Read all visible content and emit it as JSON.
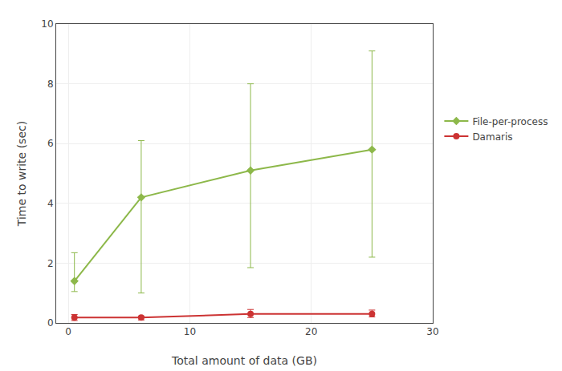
{
  "chart_data": {
    "type": "line",
    "xlabel": "Total amount of data (GB)",
    "ylabel": "Time to write (sec)",
    "x": [
      0.5,
      6,
      15,
      25
    ],
    "series": [
      {
        "name": "File-per-process",
        "color": "#8db84a",
        "marker": "diamond",
        "line_style": "solid",
        "values": [
          1.4,
          4.2,
          5.1,
          5.8
        ],
        "min": [
          1.05,
          1.0,
          1.85,
          2.2
        ],
        "max": [
          2.35,
          6.1,
          8.0,
          9.1
        ]
      },
      {
        "name": "Damaris",
        "color": "#cc3333",
        "marker": "circle",
        "line_style": "solid",
        "values": [
          0.18,
          0.18,
          0.3,
          0.3
        ],
        "min": [
          0.08,
          0.1,
          0.18,
          0.2
        ],
        "max": [
          0.28,
          0.23,
          0.45,
          0.43
        ]
      }
    ],
    "xlim": [
      -1,
      30
    ],
    "ylim": [
      0,
      10
    ],
    "xticks": [
      0,
      10,
      20,
      30
    ],
    "yticks": [
      0,
      2,
      4,
      6,
      8,
      10
    ],
    "grid": true,
    "legend": "right"
  }
}
